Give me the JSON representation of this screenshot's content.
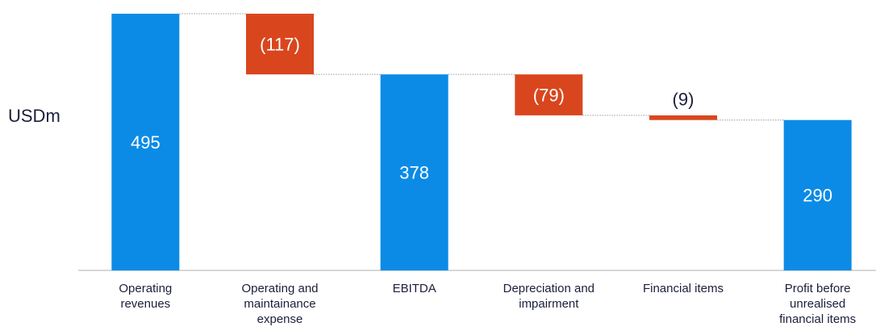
{
  "chart_data": {
    "type": "waterfall",
    "y_label": "USDm",
    "categories": [
      "Operating\nrevenues",
      "Operating and\nmaintainance\nexpense",
      "EBITDA",
      "Depreciation and\nimpairment",
      "Financial items",
      "Profit before\nunrealised\nfinancial items"
    ],
    "values": [
      495,
      -117,
      378,
      -79,
      -9,
      290
    ],
    "value_labels": [
      "495",
      "(117)",
      "378",
      "(79)",
      "(9)",
      "290"
    ],
    "measures": [
      "absolute",
      "relative",
      "absolute",
      "relative",
      "relative",
      "absolute"
    ],
    "total_color": "#0b8be6",
    "decrease_color": "#d9461e",
    "ylim": [
      0,
      495
    ]
  }
}
